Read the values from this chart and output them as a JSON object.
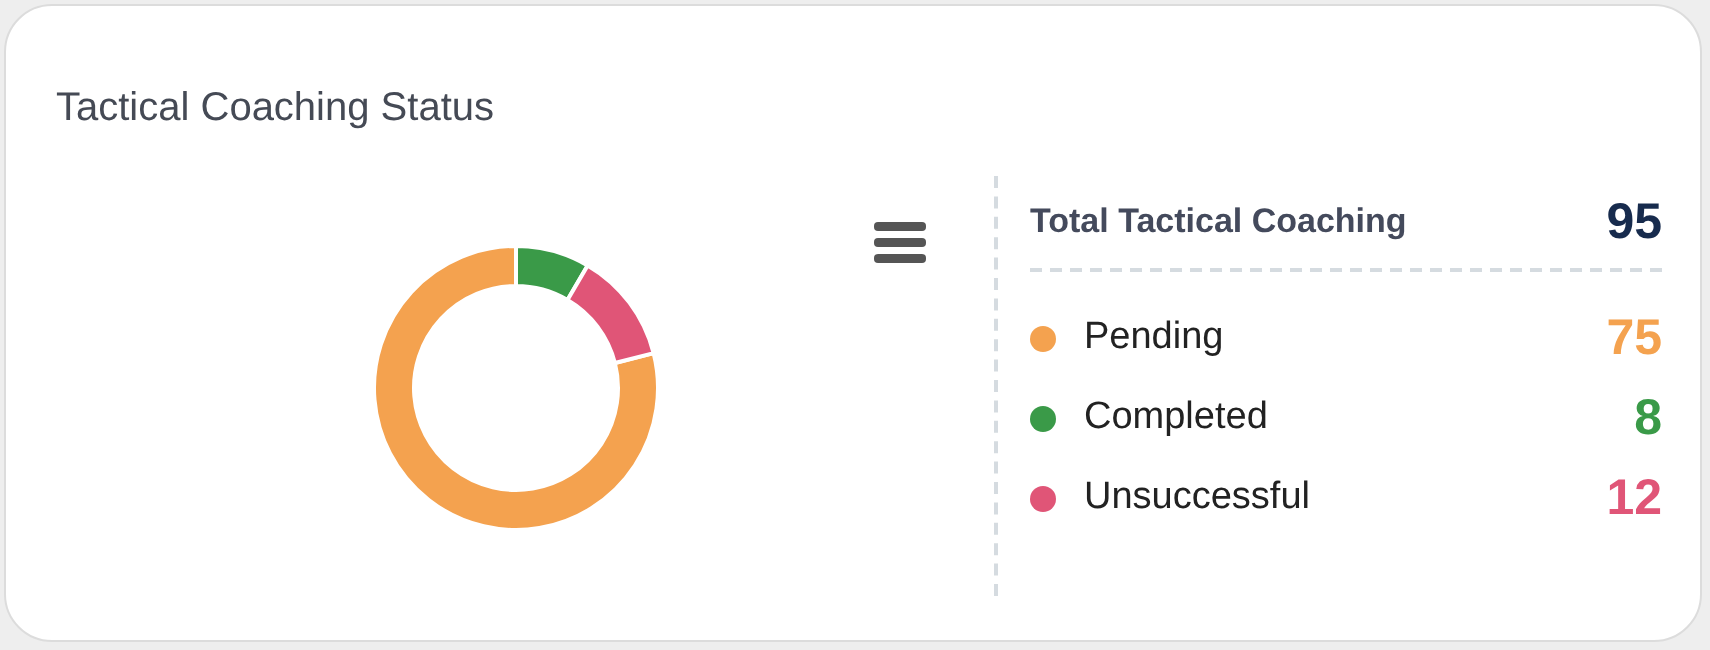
{
  "chart_data": {
    "type": "donut",
    "title": "Tactical Coaching Status",
    "legend_title": "Total Tactical Coaching",
    "totals": [
      "95"
    ],
    "categories": [
      "Pending",
      "Completed",
      "Unsuccessful"
    ],
    "values": [
      75,
      8,
      12
    ],
    "colors": [
      "#f4a24f",
      "#3a9a48",
      "#e05577"
    ],
    "data_labels": true,
    "legend": "right"
  }
}
